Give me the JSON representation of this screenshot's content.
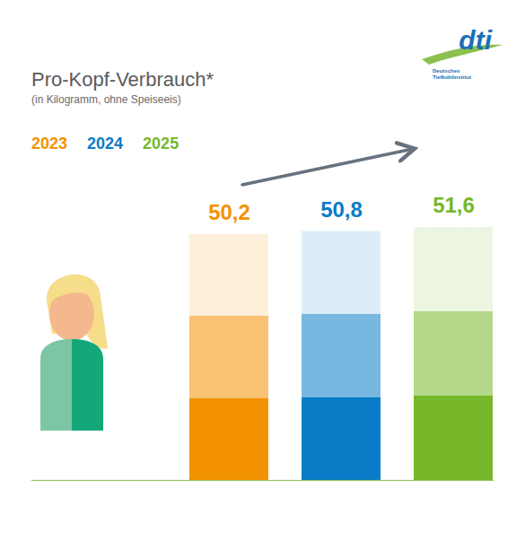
{
  "chart_data": {
    "type": "bar",
    "title": "Pro-Kopf-Verbrauch*",
    "subtitle": "(in Kilogramm, ohne Speiseeis)",
    "categories": [
      "2023",
      "2024",
      "2025"
    ],
    "values": [
      50.2,
      50.8,
      51.6
    ],
    "value_labels": [
      "50,2",
      "50,8",
      "51,6"
    ],
    "colors": [
      "#f39200",
      "#0a7cc7",
      "#76b82a"
    ],
    "ylim": [
      0,
      52
    ],
    "yticks": [],
    "tick_labels": false,
    "data_labels": true,
    "legend": "top-left",
    "logo_text": [
      "dti",
      "Deutsches Tiefkühlinstitut"
    ]
  }
}
